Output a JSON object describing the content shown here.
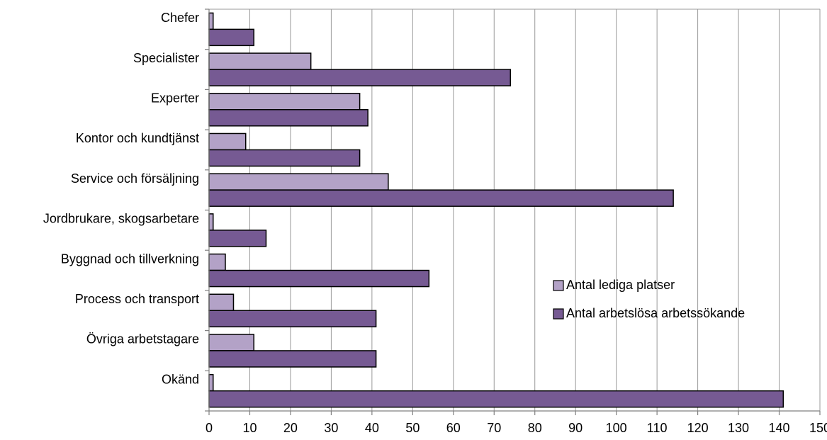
{
  "chart_data": {
    "type": "bar",
    "orientation": "horizontal",
    "title": "",
    "xlabel": "",
    "ylabel": "",
    "categories": [
      "Chefer",
      "Specialister",
      "Experter",
      "Kontor och kundtjänst",
      "Service och försäljning",
      "Jordbrukare, skogsarbetare",
      "Byggnad och tillverkning",
      "Process och transport",
      "Övriga arbetstagare",
      "Okänd"
    ],
    "series": [
      {
        "name": "Antal lediga platser",
        "color": "#b3a2c7",
        "values": [
          1,
          25,
          37,
          9,
          44,
          1,
          4,
          6,
          11,
          1
        ]
      },
      {
        "name": "Antal arbetslösa arbetssökande",
        "color": "#765a93",
        "values": [
          11,
          74,
          39,
          37,
          114,
          14,
          54,
          41,
          41,
          141
        ]
      }
    ],
    "xlim": [
      0,
      150
    ],
    "xticks": [
      0,
      10,
      20,
      30,
      40,
      50,
      60,
      70,
      80,
      90,
      100,
      110,
      120,
      130,
      140,
      150
    ],
    "grid": "vertical",
    "legend_position": "right"
  }
}
